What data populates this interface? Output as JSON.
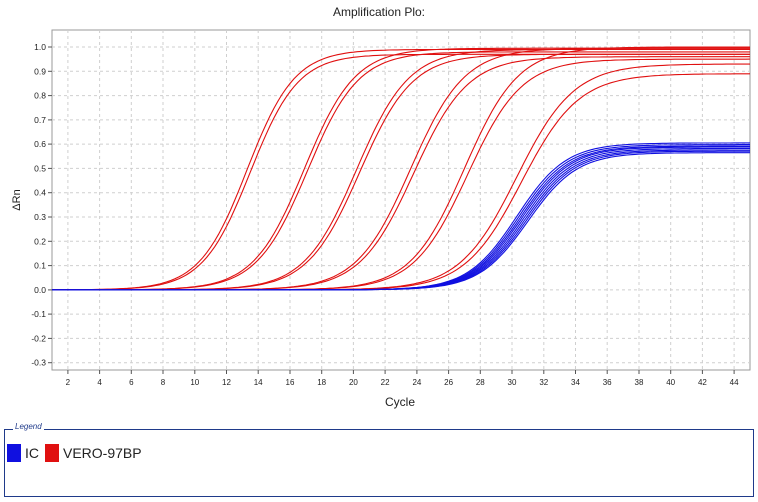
{
  "chart_data": {
    "type": "line",
    "title": "Amplification Plo:",
    "xlabel": "Cycle",
    "ylabel": "ΔRn",
    "xlim": [
      1,
      45
    ],
    "ylim": [
      -0.33,
      1.07
    ],
    "xticks": [
      2,
      4,
      6,
      8,
      10,
      12,
      14,
      16,
      18,
      20,
      22,
      24,
      26,
      28,
      30,
      32,
      34,
      36,
      38,
      40,
      42,
      44
    ],
    "yticks": [
      -0.3,
      -0.2,
      -0.1,
      0.0,
      0.1,
      0.2,
      0.3,
      0.4,
      0.5,
      0.6,
      0.7,
      0.8,
      0.9,
      1.0
    ],
    "grid": true,
    "legend_position": "bottom",
    "series": [
      {
        "name": "VERO-97BP",
        "color": "#e01010",
        "curves": [
          {
            "ct": 13.3,
            "plateau": 0.99,
            "slope": 1.5
          },
          {
            "ct": 13.5,
            "plateau": 0.97,
            "slope": 1.5
          },
          {
            "ct": 16.9,
            "plateau": 0.995,
            "slope": 1.6
          },
          {
            "ct": 17.1,
            "plateau": 0.98,
            "slope": 1.6
          },
          {
            "ct": 20.2,
            "plateau": 0.99,
            "slope": 1.65
          },
          {
            "ct": 20.4,
            "plateau": 0.97,
            "slope": 1.65
          },
          {
            "ct": 23.6,
            "plateau": 0.995,
            "slope": 1.7
          },
          {
            "ct": 23.8,
            "plateau": 0.96,
            "slope": 1.7
          },
          {
            "ct": 27.0,
            "plateau": 1.0,
            "slope": 1.7
          },
          {
            "ct": 27.2,
            "plateau": 0.95,
            "slope": 1.7
          },
          {
            "ct": 30.3,
            "plateau": 0.93,
            "slope": 1.8
          },
          {
            "ct": 30.6,
            "plateau": 0.89,
            "slope": 1.8
          }
        ]
      },
      {
        "name": "IC",
        "color": "#1010e0",
        "curves": [
          {
            "ct": 30.3,
            "plateau": 0.605,
            "slope": 1.55
          },
          {
            "ct": 30.4,
            "plateau": 0.598,
            "slope": 1.55
          },
          {
            "ct": 30.5,
            "plateau": 0.592,
            "slope": 1.55
          },
          {
            "ct": 30.6,
            "plateau": 0.588,
            "slope": 1.55
          },
          {
            "ct": 30.7,
            "plateau": 0.582,
            "slope": 1.55
          },
          {
            "ct": 30.8,
            "plateau": 0.576,
            "slope": 1.55
          },
          {
            "ct": 30.9,
            "plateau": 0.571,
            "slope": 1.55
          },
          {
            "ct": 31.0,
            "plateau": 0.565,
            "slope": 1.55
          }
        ]
      }
    ]
  },
  "legend": {
    "caption": "Legend",
    "items": [
      {
        "label": "IC",
        "color": "#1010e0"
      },
      {
        "label": "VERO-97BP",
        "color": "#e01010"
      }
    ]
  }
}
